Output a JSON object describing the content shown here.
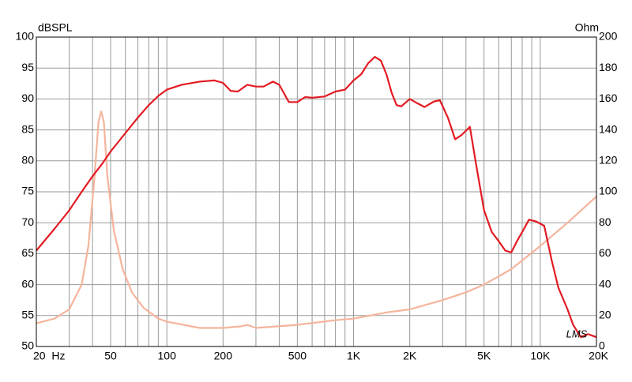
{
  "chart_data": {
    "type": "line",
    "y_label": "dBSPL",
    "y2_label": "Ohm",
    "annotation": "LMS",
    "log_x": true,
    "grid": true,
    "xlim": [
      20,
      20000
    ],
    "xticks": [
      {
        "value": 20,
        "label": "20  Hz"
      },
      50,
      100,
      200,
      500,
      {
        "value": 1000,
        "label": "1K"
      },
      {
        "value": 2000,
        "label": "2K"
      },
      {
        "value": 5000,
        "label": "5K"
      },
      {
        "value": 10000,
        "label": "10K"
      },
      {
        "value": 20000,
        "label": "20K"
      }
    ],
    "x_minor_grid": [
      30,
      40,
      60,
      70,
      80,
      90,
      300,
      400,
      600,
      700,
      800,
      900,
      3000,
      4000,
      6000,
      7000,
      8000,
      9000
    ],
    "ylim": [
      50,
      100
    ],
    "yticks": [
      50,
      55,
      60,
      65,
      70,
      75,
      80,
      85,
      90,
      95,
      100
    ],
    "y2lim": [
      0,
      200
    ],
    "y2ticks": [
      0,
      20,
      40,
      60,
      80,
      100,
      120,
      140,
      160,
      180,
      200
    ],
    "series": [
      {
        "color": "#e31b23",
        "x": [
          20,
          25,
          30,
          35,
          40,
          45,
          50,
          60,
          70,
          80,
          90,
          100,
          120,
          150,
          180,
          200,
          220,
          240,
          270,
          300,
          330,
          370,
          400,
          450,
          500,
          550,
          600,
          700,
          800,
          900,
          1000,
          1100,
          1200,
          1300,
          1400,
          1500,
          1600,
          1700,
          1800,
          2000,
          2200,
          2400,
          2700,
          2900,
          3200,
          3500,
          3800,
          4200,
          4500,
          5000,
          5500,
          6000,
          6500,
          7000,
          7500,
          8000,
          8700,
          9500,
          10500,
          11500,
          12500,
          14000,
          15000,
          16500,
          18000,
          20000
        ],
        "values": [
          65.5,
          69,
          72,
          75,
          77.5,
          79.5,
          81.5,
          84.5,
          87,
          89,
          90.5,
          91.5,
          92.3,
          92.8,
          93,
          92.6,
          91.3,
          91.2,
          92.3,
          92,
          92,
          92.8,
          92.3,
          89.5,
          89.5,
          90.3,
          90.2,
          90.4,
          91.2,
          91.5,
          93,
          94,
          95.8,
          96.8,
          96.2,
          94,
          91,
          89,
          88.8,
          90,
          89.3,
          88.7,
          89.6,
          89.8,
          87,
          83.5,
          84.2,
          85.5,
          80,
          72,
          68.5,
          67,
          65.5,
          65.2,
          67,
          68.5,
          70.5,
          70.2,
          69.5,
          64,
          59.5,
          56,
          53.5,
          51.5,
          52,
          51.5
        ]
      },
      {
        "color": "#f5b49c",
        "axis": "y2",
        "x": [
          20,
          25,
          30,
          35,
          38,
          41,
          43,
          44.5,
          46,
          48,
          52,
          58,
          65,
          75,
          90,
          100,
          150,
          200,
          250,
          270,
          300,
          500,
          800,
          1000,
          1500,
          2000,
          3000,
          4000,
          5000,
          7000,
          10000,
          14000,
          20000
        ],
        "values": [
          15,
          18,
          24,
          40,
          65,
          110,
          145,
          152,
          145,
          110,
          75,
          50,
          35,
          25,
          18,
          16,
          12,
          12,
          13,
          14,
          12,
          14,
          17,
          18,
          22,
          24,
          30,
          35,
          40,
          50,
          65,
          80,
          97
        ]
      }
    ]
  }
}
